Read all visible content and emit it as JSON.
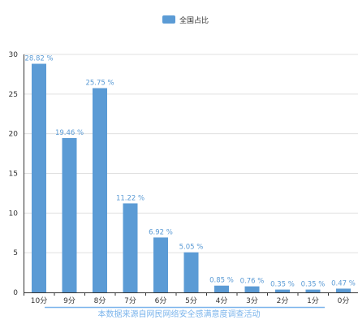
{
  "chart_data": {
    "type": "bar",
    "categories": [
      "10分",
      "9分",
      "8分",
      "7分",
      "6分",
      "5分",
      "4分",
      "3分",
      "2分",
      "1分",
      "0分"
    ],
    "series": [
      {
        "name": "全国占比",
        "values": [
          28.82,
          19.46,
          25.75,
          11.22,
          6.92,
          5.05,
          0.85,
          0.76,
          0.35,
          0.35,
          0.47
        ],
        "labels": [
          "28.82 %",
          "19.46 %",
          "25.75 %",
          "11.22 %",
          "6.92 %",
          "5.05 %",
          "0.85 %",
          "0.76 %",
          "0.35 %",
          "0.35 %",
          "0.47 %"
        ]
      }
    ],
    "yticks": [
      "0",
      "5",
      "10",
      "15",
      "20",
      "25",
      "30"
    ],
    "ylim": [
      0,
      30
    ],
    "grid": true,
    "legend_position": "top-center",
    "footnote": "本数据来源自网民网络安全感满意度调查活动"
  },
  "colors": {
    "bar": "#5b9bd5",
    "label": "#5b9bd5",
    "footnote": "#7cb5ec",
    "grid": "#e0e0e0",
    "axis": "#333333"
  }
}
